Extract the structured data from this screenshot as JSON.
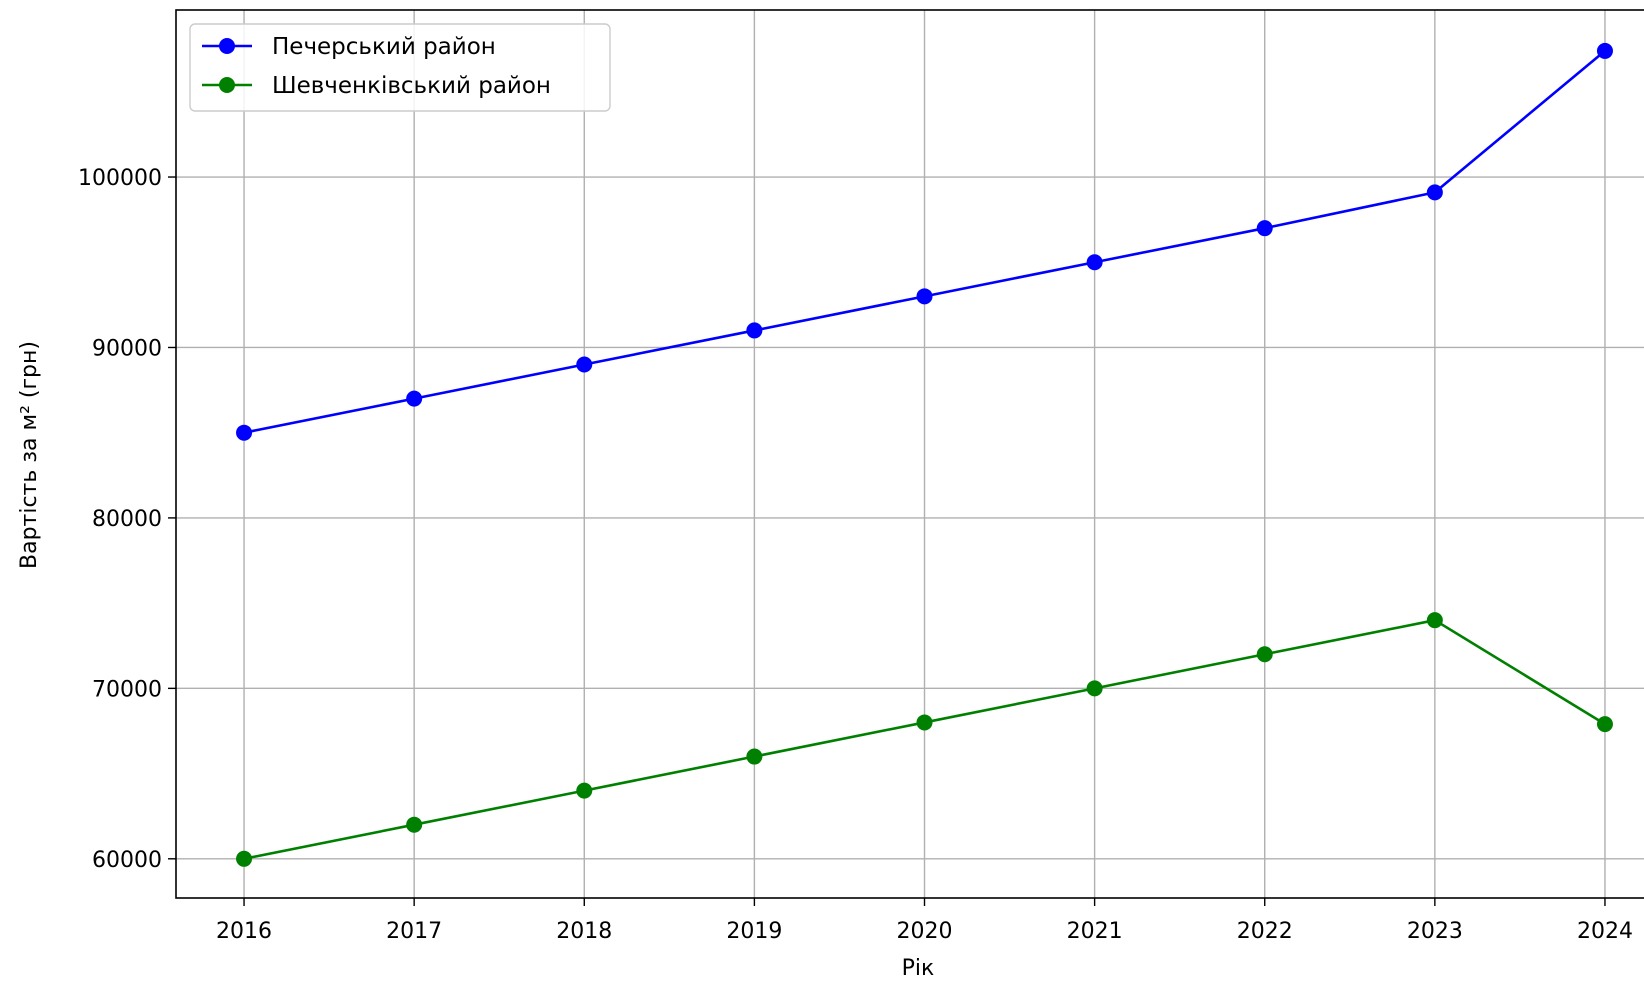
{
  "chart_data": {
    "type": "line",
    "title": "",
    "xlabel": "Рік",
    "ylabel": "Вартість за м² (грн)",
    "x": [
      2016,
      2017,
      2018,
      2019,
      2020,
      2021,
      2022,
      2023,
      2024
    ],
    "xticks": [
      "2016",
      "2017",
      "2018",
      "2019",
      "2020",
      "2021",
      "2022",
      "2023",
      "2024"
    ],
    "yticks": [
      "60000",
      "70000",
      "80000",
      "90000",
      "100000"
    ],
    "xlim": [
      2015.6,
      2024.3
    ],
    "ylim": [
      57700,
      109800
    ],
    "grid": true,
    "legend_position": "top-left",
    "series": [
      {
        "name": "Печерський район",
        "color": "#0000ff",
        "marker": "circle",
        "values": [
          85000,
          87000,
          89000,
          91000,
          93000,
          95000,
          97000,
          99100,
          107400
        ]
      },
      {
        "name": "Шевченківський район",
        "color": "#008000",
        "marker": "circle",
        "values": [
          60000,
          62000,
          64000,
          66000,
          68000,
          70000,
          72000,
          74000,
          67900
        ]
      }
    ]
  }
}
